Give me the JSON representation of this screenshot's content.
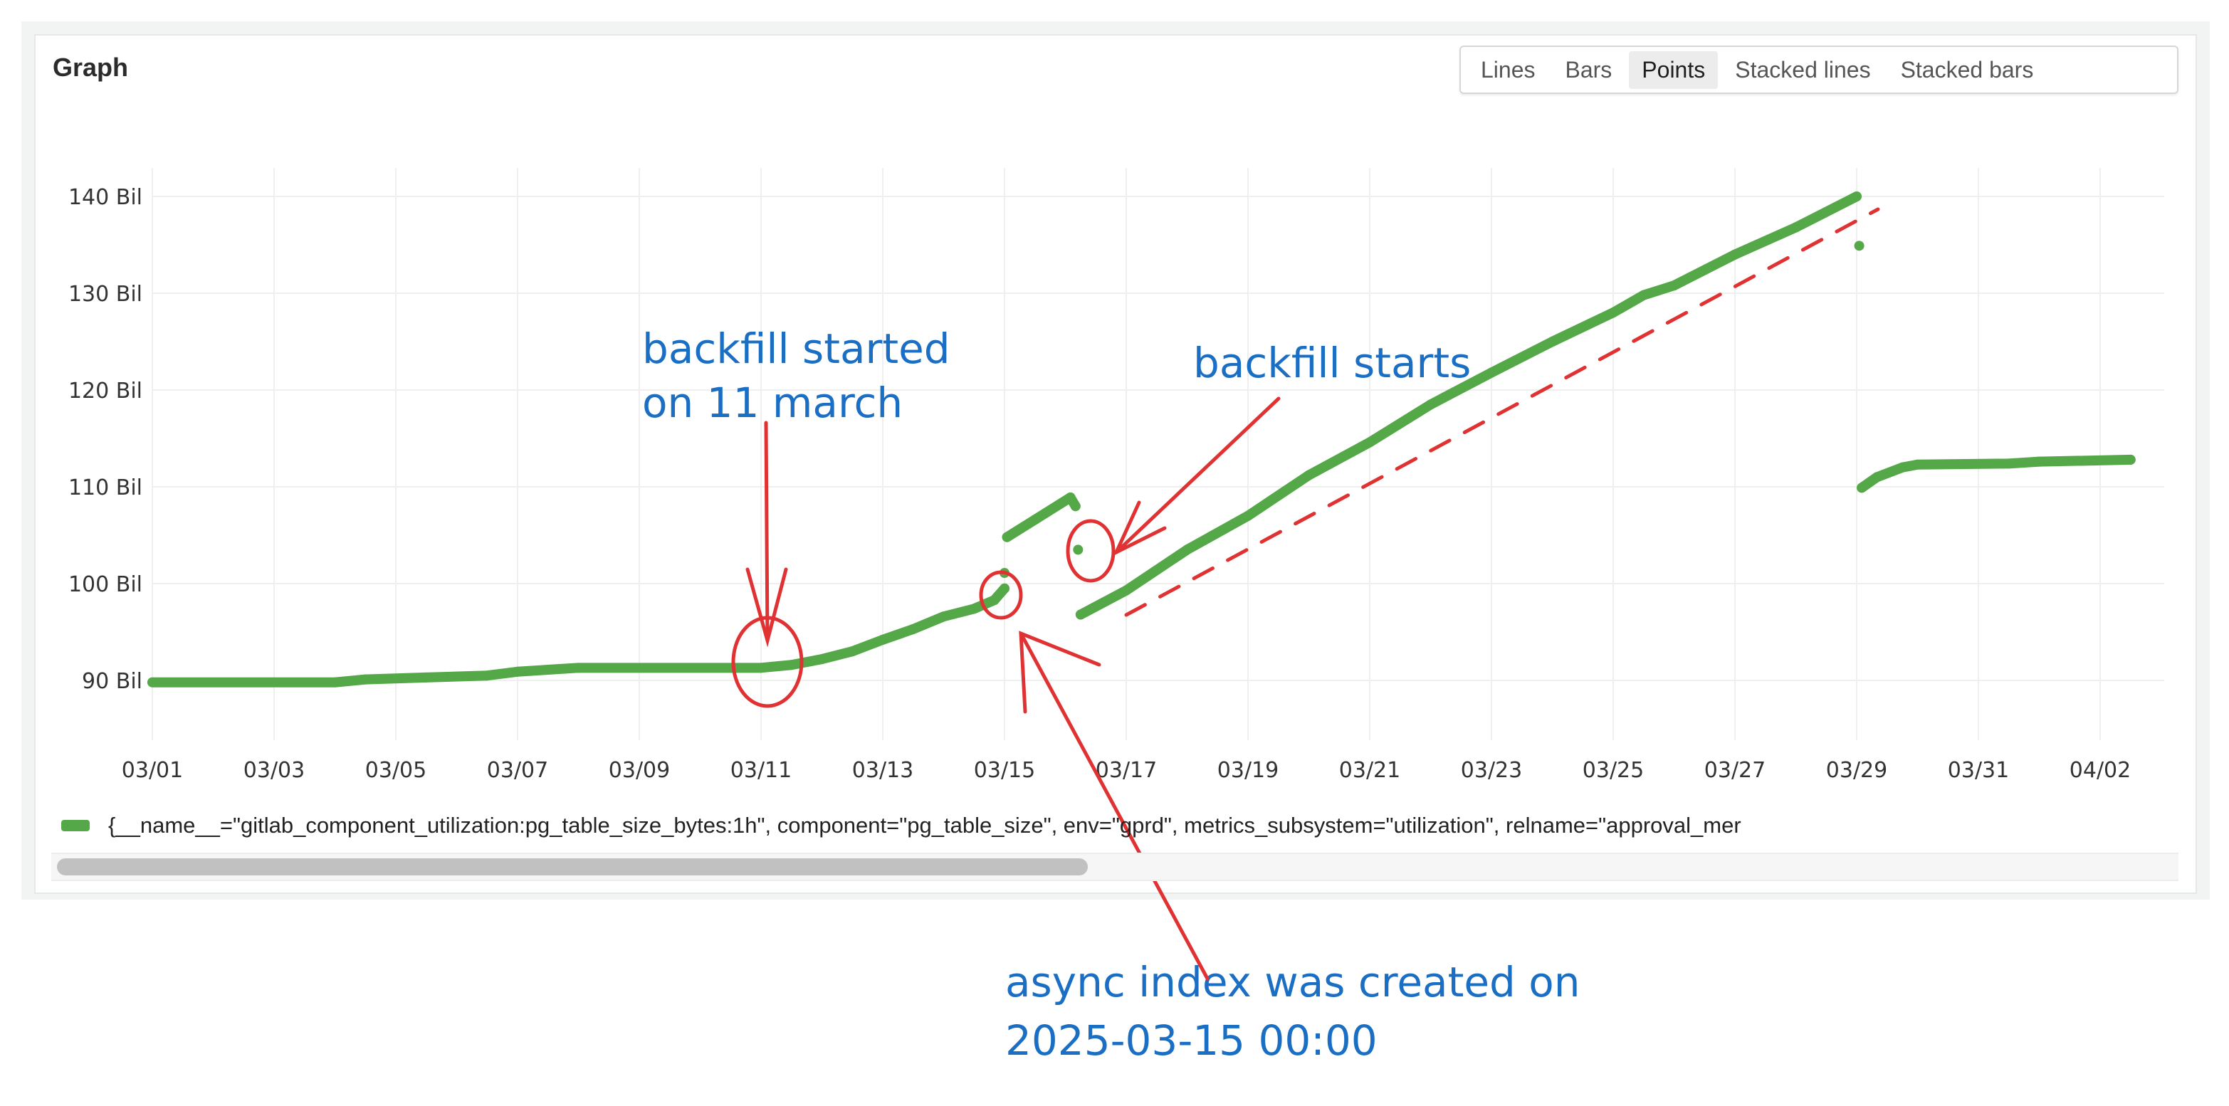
{
  "panel": {
    "title": "Graph",
    "view_modes": [
      {
        "label": "Lines",
        "active": false
      },
      {
        "label": "Bars",
        "active": false
      },
      {
        "label": "Points",
        "active": true
      },
      {
        "label": "Stacked lines",
        "active": false
      },
      {
        "label": "Stacked bars",
        "active": false
      }
    ]
  },
  "legend": {
    "series_label": "{__name__=\"gitlab_component_utilization:pg_table_size_bytes:1h\", component=\"pg_table_size\", env=\"gprd\", metrics_subsystem=\"utilization\", relname=\"approval_mer",
    "color": "#54a847"
  },
  "scrollbar": {
    "position": 0,
    "visible_fraction": 0.48
  },
  "chart_data": {
    "type": "scatter",
    "year": 2025,
    "x_ticks": [
      "03/01",
      "03/03",
      "03/05",
      "03/07",
      "03/09",
      "03/11",
      "03/13",
      "03/15",
      "03/17",
      "03/19",
      "03/21",
      "03/23",
      "03/25",
      "03/27",
      "03/29",
      "03/31",
      "04/02"
    ],
    "y_ticks": [
      "90 Bil",
      "100 Bil",
      "110 Bil",
      "120 Bil",
      "130 Bil",
      "140 Bil"
    ],
    "y_tick_values": [
      90,
      100,
      110,
      120,
      130,
      140
    ],
    "xlim": [
      "03-01 00:00",
      "04-02 12:00"
    ],
    "ylim": [
      80,
      147
    ],
    "y_unit": "Bil",
    "grid": true,
    "series_color": "#54a847",
    "segments": [
      [
        [
          "03-01 00:00",
          89.8
        ],
        [
          "03-04 00:00",
          89.8
        ],
        [
          "03-04 12:00",
          90.1
        ],
        [
          "03-05 12:00",
          90.3
        ],
        [
          "03-06 12:00",
          90.5
        ],
        [
          "03-07 00:00",
          90.9
        ],
        [
          "03-07 12:00",
          91.1
        ],
        [
          "03-08 00:00",
          91.3
        ],
        [
          "03-11 00:00",
          91.3
        ],
        [
          "03-11 12:00",
          91.6
        ],
        [
          "03-12 00:00",
          92.2
        ],
        [
          "03-12 12:00",
          93.0
        ],
        [
          "03-13 00:00",
          94.2
        ],
        [
          "03-13 12:00",
          95.3
        ],
        [
          "03-14 00:00",
          96.6
        ],
        [
          "03-14 12:00",
          97.4
        ],
        [
          "03-14 20:00",
          98.3
        ],
        [
          "03-15 00:00",
          99.5
        ]
      ],
      [
        [
          "03-15 00:00",
          101.1
        ]
      ],
      [
        [
          "03-15 01:00",
          104.8
        ],
        [
          "03-15 12:00",
          106.6
        ],
        [
          "03-16 02:00",
          108.9
        ],
        [
          "03-16 04:00",
          108.0
        ]
      ],
      [
        [
          "03-16 05:00",
          103.5
        ]
      ],
      [
        [
          "03-16 06:00",
          96.8
        ],
        [
          "03-17 00:00",
          99.3
        ],
        [
          "03-18 00:00",
          103.5
        ],
        [
          "03-19 00:00",
          107.0
        ],
        [
          "03-20 00:00",
          111.2
        ],
        [
          "03-21 00:00",
          114.6
        ],
        [
          "03-22 00:00",
          118.5
        ],
        [
          "03-23 00:00",
          121.8
        ],
        [
          "03-24 00:00",
          125.0
        ],
        [
          "03-25 00:00",
          128.0
        ],
        [
          "03-25 12:00",
          129.8
        ],
        [
          "03-26 00:00",
          130.8
        ],
        [
          "03-27 00:00",
          134.0
        ],
        [
          "03-28 00:00",
          136.8
        ],
        [
          "03-29 00:00",
          140.0
        ]
      ],
      [
        [
          "03-29 01:00",
          134.9
        ]
      ],
      [
        [
          "03-29 02:00",
          109.9
        ],
        [
          "03-29 08:00",
          111.0
        ],
        [
          "03-29 18:00",
          112.0
        ],
        [
          "03-30 00:00",
          112.3
        ],
        [
          "03-31 12:00",
          112.4
        ],
        [
          "04-01 00:00",
          112.6
        ],
        [
          "04-02 12:00",
          112.8
        ]
      ]
    ]
  },
  "annotations": {
    "backfill_started_line1": "backfill started",
    "backfill_started_line2": "on 11 march",
    "backfill_starts": "backfill starts",
    "async_index_line1": "async index was created on",
    "async_index_line2": "2025-03-15 00:00",
    "ink_color": "#1a6fc4",
    "marker_color": "#e03232"
  }
}
